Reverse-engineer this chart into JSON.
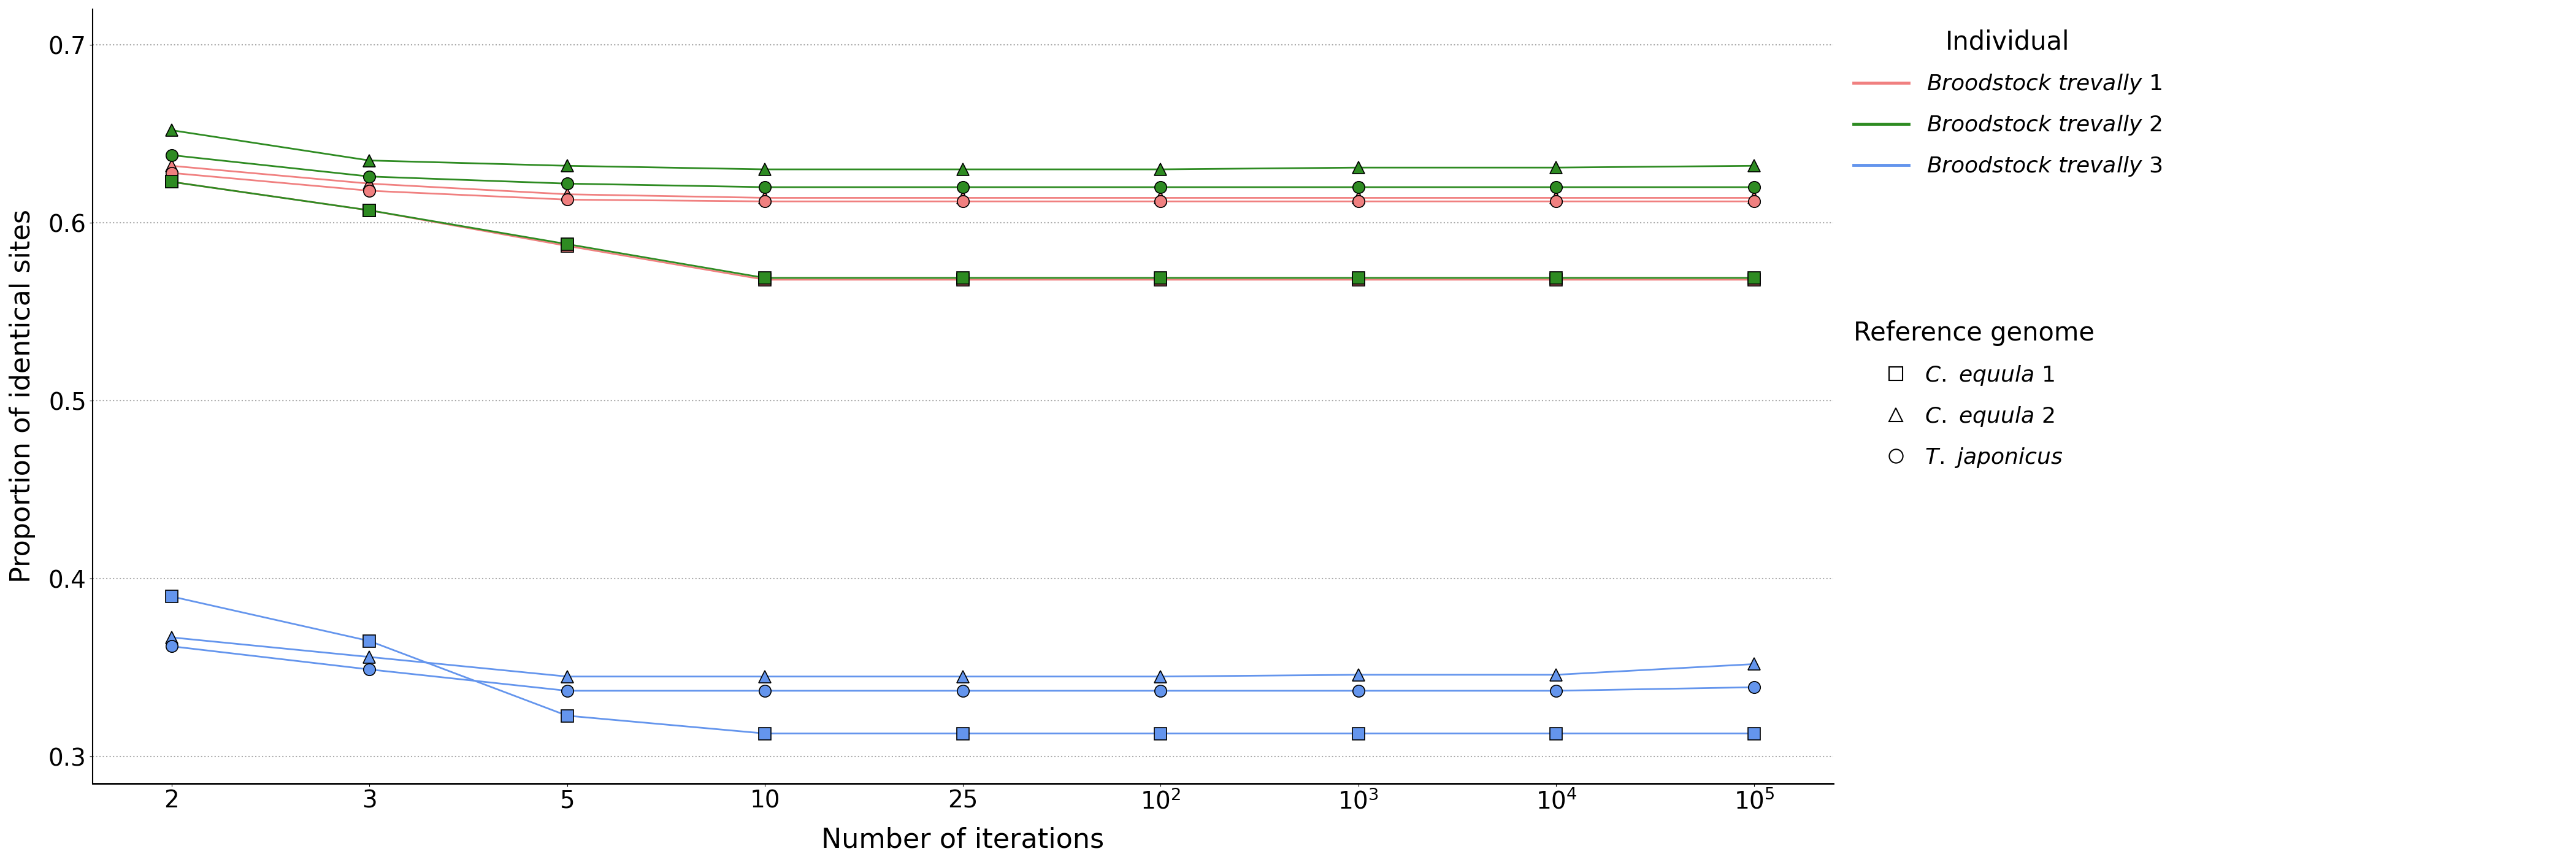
{
  "x_values": [
    2,
    3,
    5,
    10,
    25,
    100,
    1000,
    10000,
    100000
  ],
  "x_labels": [
    "2",
    "3",
    "5",
    "10",
    "25",
    "10$^2$",
    "10$^3$",
    "10$^4$",
    "10$^5$"
  ],
  "individuals": {
    "broodstock1": {
      "color": "#F08080",
      "label": "Broodstock trevally 1",
      "refs": {
        "c_equula1": [
          0.623,
          0.607,
          0.587,
          0.568,
          0.568,
          0.568,
          0.568,
          0.568,
          0.568
        ],
        "c_equula2": [
          0.632,
          0.622,
          0.616,
          0.614,
          0.614,
          0.614,
          0.614,
          0.614,
          0.614
        ],
        "t_japonicus": [
          0.628,
          0.618,
          0.613,
          0.612,
          0.612,
          0.612,
          0.612,
          0.612,
          0.612
        ]
      }
    },
    "broodstock2": {
      "color": "#2E8B22",
      "label": "Broodstock trevally 2",
      "refs": {
        "c_equula1": [
          0.623,
          0.607,
          0.588,
          0.569,
          0.569,
          0.569,
          0.569,
          0.569,
          0.569
        ],
        "c_equula2": [
          0.652,
          0.635,
          0.632,
          0.63,
          0.63,
          0.63,
          0.631,
          0.631,
          0.632
        ],
        "t_japonicus": [
          0.638,
          0.626,
          0.622,
          0.62,
          0.62,
          0.62,
          0.62,
          0.62,
          0.62
        ]
      }
    },
    "broodstock3": {
      "color": "#6495ED",
      "label": "Broodstock trevally 3",
      "refs": {
        "c_equula1": [
          0.39,
          0.365,
          0.323,
          0.313,
          0.313,
          0.313,
          0.313,
          0.313,
          0.313
        ],
        "c_equula2": [
          0.367,
          0.356,
          0.345,
          0.345,
          0.345,
          0.345,
          0.346,
          0.346,
          0.352
        ],
        "t_japonicus": [
          0.362,
          0.349,
          0.337,
          0.337,
          0.337,
          0.337,
          0.337,
          0.337,
          0.339
        ]
      }
    }
  },
  "ref_markers": {
    "c_equula1": {
      "marker": "s"
    },
    "c_equula2": {
      "marker": "^"
    },
    "t_japonicus": {
      "marker": "o"
    }
  },
  "ylabel": "Proportion of identical sites",
  "xlabel": "Number of iterations",
  "ylim": [
    0.285,
    0.72
  ],
  "yticks": [
    0.3,
    0.4,
    0.5,
    0.6,
    0.7
  ],
  "legend_ind_title": "Individual",
  "legend_ref_title": "Reference genome",
  "background_color": "#FFFFFF",
  "grid_color": "#AAAAAA",
  "marker_size": 10,
  "linewidth": 2.0
}
